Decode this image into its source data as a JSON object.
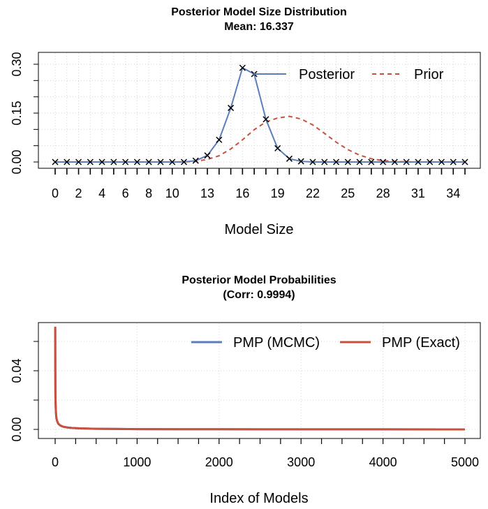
{
  "chart_data": [
    {
      "type": "line",
      "title": "Posterior Model Size Distribution",
      "subtitle": "Mean: 16.337",
      "xlabel": "Model Size",
      "ylabel": "",
      "xlim": [
        0,
        35
      ],
      "ylim": [
        0,
        0.3
      ],
      "x_tick_labels": [
        "0",
        "2",
        "4",
        "6",
        "8",
        "10",
        "13",
        "16",
        "19",
        "22",
        "25",
        "28",
        "31",
        "34"
      ],
      "x_tick_values": [
        0,
        2,
        4,
        6,
        8,
        10,
        13,
        16,
        19,
        22,
        25,
        28,
        31,
        34
      ],
      "y_tick_labels": [
        "0.00",
        "0.15",
        "0.30"
      ],
      "y_tick_values": [
        0,
        0.15,
        0.3
      ],
      "grid": true,
      "legend_position": "top-right",
      "x": [
        0,
        1,
        2,
        3,
        4,
        5,
        6,
        7,
        8,
        9,
        10,
        11,
        12,
        13,
        14,
        15,
        16,
        17,
        18,
        19,
        20,
        21,
        22,
        23,
        24,
        25,
        26,
        27,
        28,
        29,
        30,
        31,
        32,
        33,
        34,
        35
      ],
      "series": [
        {
          "name": "Posterior",
          "color": "#5a7fb8",
          "style": "solid",
          "markers": "x",
          "values": [
            0,
            0,
            0,
            0,
            0,
            0,
            0,
            0,
            0,
            0,
            0,
            0,
            0.004,
            0.02,
            0.068,
            0.166,
            0.289,
            0.27,
            0.131,
            0.042,
            0.01,
            0.002,
            0,
            0,
            0,
            0,
            0,
            0,
            0,
            0,
            0,
            0,
            0,
            0,
            0,
            0
          ]
        },
        {
          "name": "Prior",
          "color": "#c8503c",
          "style": "dashed",
          "values": [
            0,
            0,
            0,
            0,
            0,
            0,
            0,
            0,
            0,
            0,
            0,
            0.0003,
            0.002,
            0.008,
            0.019,
            0.04,
            0.068,
            0.099,
            0.123,
            0.135,
            0.14,
            0.132,
            0.114,
            0.088,
            0.061,
            0.038,
            0.021,
            0.01,
            0.004,
            0.0016,
            0.0005,
            0.0001,
            0,
            0,
            0,
            0
          ]
        }
      ]
    },
    {
      "type": "line",
      "title": "Posterior Model Probabilities",
      "subtitle": "(Corr: 0.9994)",
      "xlabel": "Index of Models",
      "ylabel": "",
      "xlim": [
        0,
        5000
      ],
      "ylim": [
        0,
        0.07
      ],
      "x_tick_labels": [
        "0",
        "1000",
        "2000",
        "3000",
        "4000",
        "5000"
      ],
      "x_tick_values": [
        0,
        1000,
        2000,
        3000,
        4000,
        5000
      ],
      "y_tick_labels": [
        "0.00",
        "0.04"
      ],
      "y_tick_values": [
        0,
        0.04
      ],
      "grid": true,
      "legend_position": "top-right",
      "x": [
        1,
        2,
        3,
        5,
        10,
        15,
        20,
        30,
        40,
        60,
        80,
        100,
        150,
        200,
        300,
        500,
        800,
        1000,
        1500,
        2000,
        3000,
        4000,
        5000
      ],
      "series": [
        {
          "name": "PMP (MCMC)",
          "color": "#5a7fb8",
          "values": [
            0.069,
            0.04,
            0.025,
            0.018,
            0.011,
            0.008,
            0.0065,
            0.0048,
            0.0038,
            0.0028,
            0.0022,
            0.0018,
            0.0013,
            0.001,
            0.0007,
            0.0004,
            0.0003,
            0.0002,
            0.0001,
            0.0001,
            5e-05,
            3e-05,
            2e-05
          ]
        },
        {
          "name": "PMP (Exact)",
          "color": "#c8503c",
          "values": [
            0.07,
            0.041,
            0.026,
            0.018,
            0.011,
            0.008,
            0.0065,
            0.0048,
            0.0038,
            0.0028,
            0.0022,
            0.0018,
            0.0013,
            0.001,
            0.0007,
            0.0004,
            0.0003,
            0.0002,
            0.0001,
            0.0001,
            5e-05,
            3e-05,
            2e-05
          ]
        }
      ]
    }
  ]
}
